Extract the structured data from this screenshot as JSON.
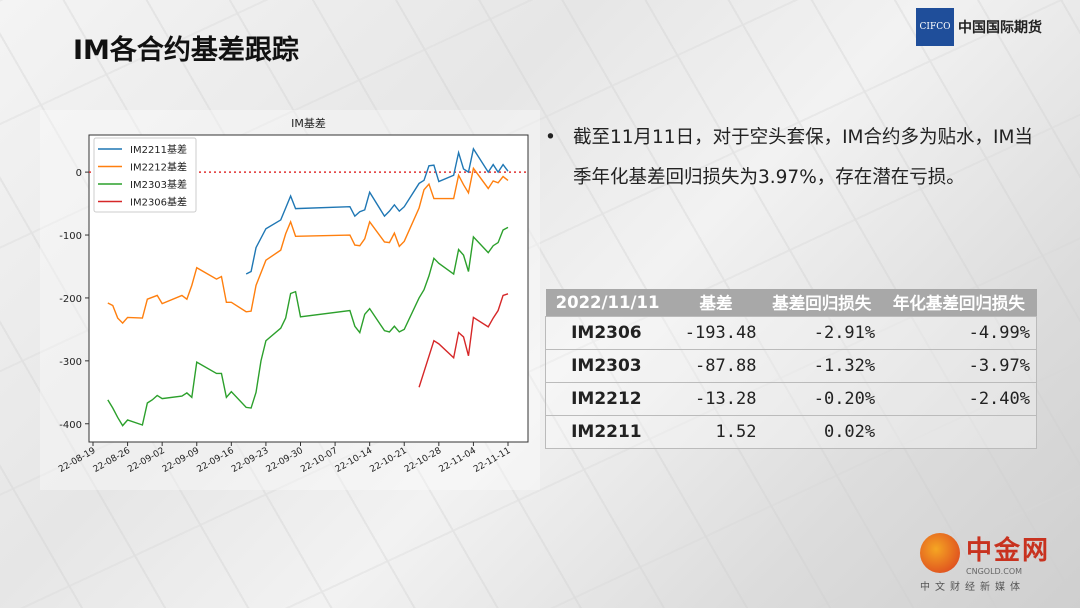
{
  "title": "IM各合约基差跟踪",
  "logo": {
    "abbr": "CIFCO",
    "name": "中国国际期货"
  },
  "bullet": "截至11月11日，对于空头套保，IM合约多为贴水，IM当季年化基差回归损失为3.97%，存在潜在亏损。",
  "table": {
    "headers": [
      "2022/11/11",
      "基差",
      "基差回归损失",
      "年化基差回归损失"
    ],
    "rows": [
      [
        "IM2306",
        "-193.48",
        "-2.91%",
        "-4.99%"
      ],
      [
        "IM2303",
        "-87.88",
        "-1.32%",
        "-3.97%"
      ],
      [
        "IM2212",
        "-13.28",
        "-0.20%",
        "-2.40%"
      ],
      [
        "IM2211",
        "1.52",
        "0.02%",
        ""
      ]
    ]
  },
  "watermark": {
    "name": "中金网",
    "domain": "CNGOLD.COM",
    "slogan": "中文财经新媒体"
  },
  "chart_data": {
    "type": "line",
    "title": "IM基差",
    "xlabel": "",
    "ylabel": "",
    "ylim": [
      -429,
      59
    ],
    "xlim_dates": [
      "2022-08-17",
      "2022-11-14"
    ],
    "xticks": [
      "22-08-19",
      "22-08-26",
      "22-09-02",
      "22-09-09",
      "22-09-16",
      "22-09-23",
      "22-09-30",
      "22-10-07",
      "22-10-14",
      "22-10-21",
      "22-10-28",
      "22-11-04",
      "22-11-11"
    ],
    "yticks": [
      0,
      -100,
      -200,
      -300,
      -400
    ],
    "reference_line": {
      "y": 0,
      "style": "dotted",
      "color": "#e03030"
    },
    "legend": "top-left",
    "series": [
      {
        "name": "IM2211基差",
        "color": "#1f77b4",
        "points": [
          [
            "2022-09-19",
            -162
          ],
          [
            "2022-09-20",
            -158
          ],
          [
            "2022-09-21",
            -120
          ],
          [
            "2022-09-23",
            -90
          ],
          [
            "2022-09-26",
            -76
          ],
          [
            "2022-09-27",
            -57
          ],
          [
            "2022-09-28",
            -38
          ],
          [
            "2022-09-29",
            -58
          ],
          [
            "2022-10-10",
            -55
          ],
          [
            "2022-10-11",
            -70
          ],
          [
            "2022-10-12",
            -63
          ],
          [
            "2022-10-13",
            -60
          ],
          [
            "2022-10-14",
            -32
          ],
          [
            "2022-10-17",
            -70
          ],
          [
            "2022-10-18",
            -62
          ],
          [
            "2022-10-19",
            -52
          ],
          [
            "2022-10-20",
            -62
          ],
          [
            "2022-10-21",
            -55
          ],
          [
            "2022-10-24",
            -18
          ],
          [
            "2022-10-25",
            -13
          ],
          [
            "2022-10-26",
            10
          ],
          [
            "2022-10-27",
            11
          ],
          [
            "2022-10-28",
            -15
          ],
          [
            "2022-10-31",
            -5
          ],
          [
            "2022-11-01",
            31
          ],
          [
            "2022-11-02",
            5
          ],
          [
            "2022-11-03",
            0
          ],
          [
            "2022-11-04",
            37
          ],
          [
            "2022-11-07",
            0
          ],
          [
            "2022-11-08",
            12
          ],
          [
            "2022-11-09",
            0
          ],
          [
            "2022-11-10",
            12
          ],
          [
            "2022-11-11",
            1.52
          ]
        ]
      },
      {
        "name": "IM2212基差",
        "color": "#ff7f0e",
        "points": [
          [
            "2022-08-22",
            -208
          ],
          [
            "2022-08-23",
            -212
          ],
          [
            "2022-08-24",
            -232
          ],
          [
            "2022-08-25",
            -240
          ],
          [
            "2022-08-26",
            -231
          ],
          [
            "2022-08-29",
            -232
          ],
          [
            "2022-08-30",
            -202
          ],
          [
            "2022-09-01",
            -196
          ],
          [
            "2022-09-02",
            -209
          ],
          [
            "2022-09-06",
            -196
          ],
          [
            "2022-09-07",
            -202
          ],
          [
            "2022-09-08",
            -180
          ],
          [
            "2022-09-09",
            -152
          ],
          [
            "2022-09-13",
            -170
          ],
          [
            "2022-09-14",
            -166
          ],
          [
            "2022-09-15",
            -207
          ],
          [
            "2022-09-16",
            -207
          ],
          [
            "2022-09-19",
            -222
          ],
          [
            "2022-09-20",
            -221
          ],
          [
            "2022-09-21",
            -180
          ],
          [
            "2022-09-23",
            -140
          ],
          [
            "2022-09-26",
            -124
          ],
          [
            "2022-09-27",
            -98
          ],
          [
            "2022-09-28",
            -79
          ],
          [
            "2022-09-29",
            -102
          ],
          [
            "2022-10-10",
            -100
          ],
          [
            "2022-10-11",
            -116
          ],
          [
            "2022-10-12",
            -117
          ],
          [
            "2022-10-13",
            -106
          ],
          [
            "2022-10-14",
            -79
          ],
          [
            "2022-10-17",
            -111
          ],
          [
            "2022-10-18",
            -112
          ],
          [
            "2022-10-19",
            -97
          ],
          [
            "2022-10-20",
            -118
          ],
          [
            "2022-10-21",
            -110
          ],
          [
            "2022-10-24",
            -57
          ],
          [
            "2022-10-25",
            -28
          ],
          [
            "2022-10-26",
            -19
          ],
          [
            "2022-10-27",
            -42
          ],
          [
            "2022-10-31",
            -42
          ],
          [
            "2022-11-01",
            -5
          ],
          [
            "2022-11-02",
            -20
          ],
          [
            "2022-11-03",
            -33
          ],
          [
            "2022-11-04",
            6
          ],
          [
            "2022-11-07",
            -26
          ],
          [
            "2022-11-08",
            -14
          ],
          [
            "2022-11-09",
            -17
          ],
          [
            "2022-11-10",
            -7
          ],
          [
            "2022-11-11",
            -13.28
          ]
        ]
      },
      {
        "name": "IM2303基差",
        "color": "#2ca02c",
        "points": [
          [
            "2022-08-22",
            -362
          ],
          [
            "2022-08-23",
            -375
          ],
          [
            "2022-08-24",
            -390
          ],
          [
            "2022-08-25",
            -403
          ],
          [
            "2022-08-26",
            -394
          ],
          [
            "2022-08-29",
            -402
          ],
          [
            "2022-08-30",
            -367
          ],
          [
            "2022-08-31",
            -362
          ],
          [
            "2022-09-01",
            -355
          ],
          [
            "2022-09-02",
            -360
          ],
          [
            "2022-09-06",
            -356
          ],
          [
            "2022-09-07",
            -351
          ],
          [
            "2022-09-08",
            -358
          ],
          [
            "2022-09-09",
            -302
          ],
          [
            "2022-09-13",
            -320
          ],
          [
            "2022-09-14",
            -320
          ],
          [
            "2022-09-15",
            -358
          ],
          [
            "2022-09-16",
            -349
          ],
          [
            "2022-09-19",
            -374
          ],
          [
            "2022-09-20",
            -375
          ],
          [
            "2022-09-21",
            -350
          ],
          [
            "2022-09-22",
            -300
          ],
          [
            "2022-09-23",
            -268
          ],
          [
            "2022-09-26",
            -248
          ],
          [
            "2022-09-27",
            -232
          ],
          [
            "2022-09-28",
            -193
          ],
          [
            "2022-09-29",
            -190
          ],
          [
            "2022-09-30",
            -230
          ],
          [
            "2022-10-10",
            -220
          ],
          [
            "2022-10-11",
            -245
          ],
          [
            "2022-10-12",
            -255
          ],
          [
            "2022-10-13",
            -226
          ],
          [
            "2022-10-14",
            -217
          ],
          [
            "2022-10-17",
            -252
          ],
          [
            "2022-10-18",
            -254
          ],
          [
            "2022-10-19",
            -245
          ],
          [
            "2022-10-20",
            -254
          ],
          [
            "2022-10-21",
            -250
          ],
          [
            "2022-10-24",
            -200
          ],
          [
            "2022-10-25",
            -187
          ],
          [
            "2022-10-26",
            -165
          ],
          [
            "2022-10-27",
            -137
          ],
          [
            "2022-10-28",
            -145
          ],
          [
            "2022-10-31",
            -162
          ],
          [
            "2022-11-01",
            -123
          ],
          [
            "2022-11-02",
            -132
          ],
          [
            "2022-11-03",
            -158
          ],
          [
            "2022-11-04",
            -103
          ],
          [
            "2022-11-07",
            -128
          ],
          [
            "2022-11-08",
            -117
          ],
          [
            "2022-11-09",
            -112
          ],
          [
            "2022-11-10",
            -92
          ],
          [
            "2022-11-11",
            -87.88
          ]
        ]
      },
      {
        "name": "IM2306基差",
        "color": "#d62728",
        "points": [
          [
            "2022-10-24",
            -342
          ],
          [
            "2022-10-27",
            -268
          ],
          [
            "2022-10-28",
            -273
          ],
          [
            "2022-10-31",
            -295
          ],
          [
            "2022-11-01",
            -255
          ],
          [
            "2022-11-02",
            -262
          ],
          [
            "2022-11-03",
            -292
          ],
          [
            "2022-11-04",
            -231
          ],
          [
            "2022-11-07",
            -246
          ],
          [
            "2022-11-08",
            -232
          ],
          [
            "2022-11-09",
            -220
          ],
          [
            "2022-11-10",
            -196
          ],
          [
            "2022-11-11",
            -193.48
          ]
        ]
      }
    ]
  }
}
